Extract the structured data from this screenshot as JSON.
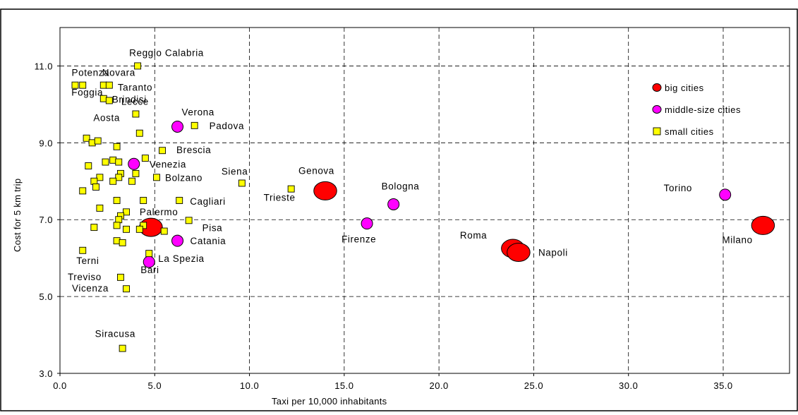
{
  "chart_data": {
    "type": "scatter",
    "xlabel": "Taxi per 10,000 inhabitants",
    "ylabel": "Cost for 5 km trip",
    "xlim": [
      0,
      38.5
    ],
    "ylim": [
      3,
      12
    ],
    "xticks": [
      "0.0",
      "5.0",
      "10.0",
      "15.0",
      "20.0",
      "25.0",
      "30.0",
      "35.0"
    ],
    "xtick_values": [
      0,
      5,
      10,
      15,
      20,
      25,
      30,
      35
    ],
    "yticks": [
      "3.0",
      "5.0",
      "7.0",
      "9.0",
      "11.0"
    ],
    "ytick_values": [
      3,
      5,
      7,
      9,
      11
    ],
    "grid": true,
    "legend_position": "top-right",
    "colors": {
      "big": "#ff0000",
      "middle": "#ff00ff",
      "small": "#ffff00",
      "stroke": "#000000",
      "grid": "#000000"
    },
    "series": [
      {
        "name": "big cities",
        "marker": "circle-large",
        "points": [
          {
            "label": "Genova",
            "x": 14.0,
            "y": 7.75
          },
          {
            "label": "Roma",
            "x": 23.9,
            "y": 6.25
          },
          {
            "label": "Napoli",
            "x": 24.2,
            "y": 6.15
          },
          {
            "label": "Milano",
            "x": 37.1,
            "y": 6.85
          },
          {
            "label": "Palermo",
            "x": 4.8,
            "y": 6.8
          }
        ]
      },
      {
        "name": "middle-size cities",
        "marker": "circle",
        "points": [
          {
            "label": "Verona",
            "x": 6.2,
            "y": 9.42
          },
          {
            "label": "Venezia",
            "x": 3.9,
            "y": 8.45
          },
          {
            "label": "Catania",
            "x": 6.2,
            "y": 6.45
          },
          {
            "label": "Bari",
            "x": 4.7,
            "y": 5.9
          },
          {
            "label": "Firenze",
            "x": 16.2,
            "y": 6.9
          },
          {
            "label": "Bologna",
            "x": 17.6,
            "y": 7.4
          },
          {
            "label": "Torino",
            "x": 35.1,
            "y": 7.65
          }
        ]
      },
      {
        "name": "small cities",
        "marker": "square",
        "points": [
          {
            "label": "Reggio Calabria",
            "x": 4.1,
            "y": 11.0
          },
          {
            "label": "Potenza",
            "x": 0.8,
            "y": 10.5
          },
          {
            "label": "Foggia",
            "x": 1.2,
            "y": 10.5
          },
          {
            "label": "Novara",
            "x": 2.3,
            "y": 10.5
          },
          {
            "label": "Taranto",
            "x": 2.6,
            "y": 10.5
          },
          {
            "label": "Brindisi",
            "x": 2.3,
            "y": 10.15
          },
          {
            "label": "Lecce",
            "x": 2.6,
            "y": 10.1
          },
          {
            "label": "Aosta",
            "x": 4.0,
            "y": 9.75
          },
          {
            "label": "Padova",
            "x": 7.1,
            "y": 9.45
          },
          {
            "label": "",
            "x": 4.2,
            "y": 9.25
          },
          {
            "label": "",
            "x": 1.4,
            "y": 9.12
          },
          {
            "label": "",
            "x": 1.7,
            "y": 9.0
          },
          {
            "label": "",
            "x": 2.0,
            "y": 9.05
          },
          {
            "label": "",
            "x": 3.0,
            "y": 8.9
          },
          {
            "label": "Brescia",
            "x": 5.4,
            "y": 8.8
          },
          {
            "label": "",
            "x": 4.5,
            "y": 8.6
          },
          {
            "label": "",
            "x": 2.8,
            "y": 8.55
          },
          {
            "label": "",
            "x": 2.4,
            "y": 8.5
          },
          {
            "label": "",
            "x": 3.1,
            "y": 8.5
          },
          {
            "label": "",
            "x": 1.5,
            "y": 8.4
          },
          {
            "label": "",
            "x": 4.0,
            "y": 8.2
          },
          {
            "label": "",
            "x": 3.2,
            "y": 8.2
          },
          {
            "label": "",
            "x": 2.1,
            "y": 8.1
          },
          {
            "label": "",
            "x": 3.1,
            "y": 8.1
          },
          {
            "label": "Bolzano",
            "x": 5.1,
            "y": 8.1
          },
          {
            "label": "",
            "x": 1.8,
            "y": 8.0
          },
          {
            "label": "",
            "x": 2.8,
            "y": 8.0
          },
          {
            "label": "",
            "x": 3.8,
            "y": 8.0
          },
          {
            "label": "Siena",
            "x": 9.6,
            "y": 7.95
          },
          {
            "label": "",
            "x": 1.9,
            "y": 7.85
          },
          {
            "label": "Trieste",
            "x": 12.2,
            "y": 7.8
          },
          {
            "label": "",
            "x": 1.2,
            "y": 7.75
          },
          {
            "label": "",
            "x": 3.0,
            "y": 7.5
          },
          {
            "label": "",
            "x": 4.4,
            "y": 7.5
          },
          {
            "label": "Cagliari",
            "x": 6.3,
            "y": 7.5
          },
          {
            "label": "",
            "x": 2.1,
            "y": 7.3
          },
          {
            "label": "",
            "x": 3.5,
            "y": 7.2
          },
          {
            "label": "",
            "x": 3.2,
            "y": 7.1
          },
          {
            "label": "",
            "x": 3.1,
            "y": 7.0
          },
          {
            "label": "Pisa",
            "x": 6.8,
            "y": 6.98
          },
          {
            "label": "",
            "x": 3.0,
            "y": 6.85
          },
          {
            "label": "",
            "x": 4.4,
            "y": 6.85
          },
          {
            "label": "",
            "x": 1.8,
            "y": 6.8
          },
          {
            "label": "",
            "x": 3.5,
            "y": 6.75
          },
          {
            "label": "",
            "x": 4.2,
            "y": 6.75
          },
          {
            "label": "",
            "x": 5.5,
            "y": 6.7
          },
          {
            "label": "",
            "x": 3.0,
            "y": 6.45
          },
          {
            "label": "",
            "x": 3.3,
            "y": 6.4
          },
          {
            "label": "Terni",
            "x": 1.2,
            "y": 6.2
          },
          {
            "label": "La Spezia",
            "x": 4.7,
            "y": 6.12
          },
          {
            "label": "Treviso",
            "x": 3.2,
            "y": 5.5
          },
          {
            "label": "Vicenza",
            "x": 3.5,
            "y": 5.2
          },
          {
            "label": "Siracusa",
            "x": 3.3,
            "y": 3.65
          }
        ]
      }
    ]
  }
}
